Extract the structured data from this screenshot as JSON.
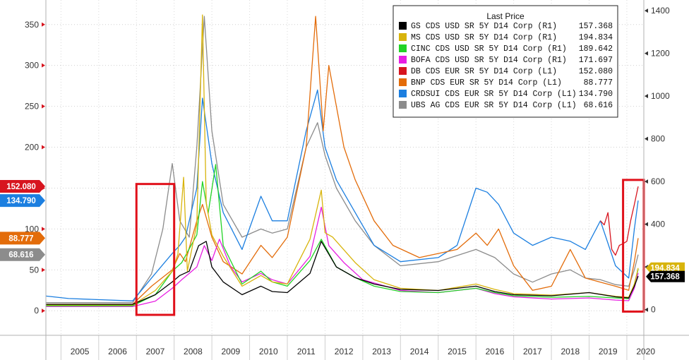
{
  "chart_data": {
    "type": "line",
    "title": "",
    "legend": {
      "title": "Last Price",
      "placement": "top-right"
    },
    "x_ticks": [
      "2005",
      "2006",
      "2007",
      "2008",
      "2009",
      "2010",
      "2011",
      "2012",
      "2013",
      "2014",
      "2015",
      "2016",
      "2017",
      "2018",
      "2019",
      "2020"
    ],
    "xlim": [
      2004.6,
      2020.45
    ],
    "left_axis": {
      "ylim": [
        -30,
        380
      ],
      "ticks": [
        0,
        50,
        100,
        150,
        200,
        250,
        300,
        350
      ],
      "tick_labels": [
        "0",
        "50",
        "100",
        "150",
        "200",
        "250",
        "300",
        "350"
      ]
    },
    "right_axis": {
      "ylim": [
        -120,
        1450
      ],
      "ticks": [
        0,
        200,
        400,
        600,
        800,
        1000,
        1200,
        1400
      ],
      "tick_labels": [
        "0",
        "200",
        "400",
        "600",
        "800",
        "1000",
        "1200",
        "1400"
      ]
    },
    "series": [
      {
        "name": "GS CDS USD SR 5Y D14 Corp",
        "axis_code": "(R1)",
        "last": "157.368",
        "color": "#000000",
        "axis": "right",
        "points": [
          [
            2004.6,
            25
          ],
          [
            2006.9,
            25
          ],
          [
            2007.5,
            70
          ],
          [
            2007.95,
            130
          ],
          [
            2008.15,
            160
          ],
          [
            2008.4,
            180
          ],
          [
            2008.65,
            300
          ],
          [
            2008.85,
            320
          ],
          [
            2009.0,
            200
          ],
          [
            2009.3,
            130
          ],
          [
            2009.8,
            70
          ],
          [
            2010.3,
            110
          ],
          [
            2010.6,
            85
          ],
          [
            2011.0,
            80
          ],
          [
            2011.6,
            170
          ],
          [
            2011.9,
            320
          ],
          [
            2012.3,
            200
          ],
          [
            2012.8,
            150
          ],
          [
            2013.3,
            120
          ],
          [
            2014.0,
            95
          ],
          [
            2015.0,
            90
          ],
          [
            2016.0,
            110
          ],
          [
            2016.5,
            85
          ],
          [
            2017.0,
            70
          ],
          [
            2018.0,
            65
          ],
          [
            2019.0,
            80
          ],
          [
            2019.7,
            60
          ],
          [
            2020.05,
            55
          ],
          [
            2020.2,
            110
          ],
          [
            2020.3,
            157.368
          ]
        ]
      },
      {
        "name": "MS CDS USD SR 5Y D14 Corp",
        "axis_code": "(R1)",
        "last": "194.834",
        "color": "#d8b40c",
        "axis": "right",
        "points": [
          [
            2004.6,
            22
          ],
          [
            2006.9,
            22
          ],
          [
            2007.5,
            90
          ],
          [
            2007.95,
            180
          ],
          [
            2008.1,
            260
          ],
          [
            2008.25,
            620
          ],
          [
            2008.35,
            180
          ],
          [
            2008.6,
            400
          ],
          [
            2008.75,
            1380
          ],
          [
            2008.85,
            500
          ],
          [
            2009.0,
            350
          ],
          [
            2009.3,
            250
          ],
          [
            2009.8,
            110
          ],
          [
            2010.3,
            160
          ],
          [
            2010.6,
            130
          ],
          [
            2011.0,
            120
          ],
          [
            2011.6,
            330
          ],
          [
            2011.9,
            560
          ],
          [
            2012.0,
            360
          ],
          [
            2012.2,
            340
          ],
          [
            2012.8,
            220
          ],
          [
            2013.3,
            140
          ],
          [
            2014.0,
            100
          ],
          [
            2015.0,
            90
          ],
          [
            2016.0,
            120
          ],
          [
            2016.5,
            95
          ],
          [
            2017.0,
            75
          ],
          [
            2018.0,
            68
          ],
          [
            2019.0,
            80
          ],
          [
            2019.7,
            62
          ],
          [
            2020.05,
            58
          ],
          [
            2020.2,
            120
          ],
          [
            2020.3,
            194.834
          ]
        ]
      },
      {
        "name": "CINC CDS USD SR 5Y D14 Corp",
        "axis_code": "(R1)",
        "last": "189.642",
        "color": "#22d326",
        "axis": "right",
        "points": [
          [
            2004.6,
            18
          ],
          [
            2006.9,
            18
          ],
          [
            2007.5,
            70
          ],
          [
            2007.95,
            180
          ],
          [
            2008.2,
            220
          ],
          [
            2008.6,
            350
          ],
          [
            2008.75,
            600
          ],
          [
            2008.9,
            450
          ],
          [
            2009.1,
            680
          ],
          [
            2009.3,
            300
          ],
          [
            2009.8,
            120
          ],
          [
            2010.3,
            180
          ],
          [
            2010.6,
            130
          ],
          [
            2011.0,
            110
          ],
          [
            2011.6,
            230
          ],
          [
            2011.9,
            330
          ],
          [
            2012.3,
            200
          ],
          [
            2012.8,
            150
          ],
          [
            2013.3,
            110
          ],
          [
            2014.0,
            85
          ],
          [
            2015.0,
            80
          ],
          [
            2016.0,
            100
          ],
          [
            2016.5,
            80
          ],
          [
            2017.0,
            65
          ],
          [
            2018.0,
            58
          ],
          [
            2019.0,
            62
          ],
          [
            2019.7,
            55
          ],
          [
            2020.05,
            52
          ],
          [
            2020.2,
            120
          ],
          [
            2020.3,
            189.642
          ]
        ]
      },
      {
        "name": "BOFA CDS USD SR 5Y D14 Corp",
        "axis_code": "(R1)",
        "last": "171.697",
        "color": "#e81ee2",
        "axis": "right",
        "points": [
          [
            2004.6,
            15
          ],
          [
            2006.9,
            15
          ],
          [
            2007.5,
            40
          ],
          [
            2007.95,
            100
          ],
          [
            2008.2,
            140
          ],
          [
            2008.6,
            200
          ],
          [
            2008.8,
            300
          ],
          [
            2009.0,
            230
          ],
          [
            2009.2,
            330
          ],
          [
            2009.5,
            200
          ],
          [
            2009.8,
            130
          ],
          [
            2010.3,
            170
          ],
          [
            2010.6,
            140
          ],
          [
            2011.0,
            120
          ],
          [
            2011.6,
            250
          ],
          [
            2011.9,
            480
          ],
          [
            2012.1,
            300
          ],
          [
            2012.5,
            220
          ],
          [
            2013.0,
            140
          ],
          [
            2014.0,
            90
          ],
          [
            2015.0,
            80
          ],
          [
            2016.0,
            100
          ],
          [
            2016.5,
            75
          ],
          [
            2017.0,
            60
          ],
          [
            2018.0,
            50
          ],
          [
            2019.0,
            55
          ],
          [
            2019.7,
            45
          ],
          [
            2020.05,
            42
          ],
          [
            2020.2,
            100
          ],
          [
            2020.3,
            171.697
          ]
        ]
      },
      {
        "name": "DB CDS EUR SR 5Y D14 Corp",
        "axis_code": "(L1)",
        "last": "152.080",
        "color": "#d7151f",
        "axis": "left",
        "points": [
          [
            2019.3,
            110
          ],
          [
            2019.4,
            105
          ],
          [
            2019.5,
            120
          ],
          [
            2019.6,
            75
          ],
          [
            2019.7,
            68
          ],
          [
            2019.8,
            80
          ],
          [
            2019.9,
            82
          ],
          [
            2020.0,
            85
          ],
          [
            2020.1,
            110
          ],
          [
            2020.2,
            130
          ],
          [
            2020.3,
            152.08
          ]
        ]
      },
      {
        "name": "BNP CDS EUR SR 5Y D14 Corp",
        "axis_code": "(L1)",
        "last": "88.777",
        "color": "#e36c0a",
        "axis": "left",
        "points": [
          [
            2004.6,
            8
          ],
          [
            2006.9,
            8
          ],
          [
            2007.4,
            30
          ],
          [
            2007.95,
            50
          ],
          [
            2008.15,
            70
          ],
          [
            2008.3,
            60
          ],
          [
            2008.6,
            110
          ],
          [
            2008.75,
            130
          ],
          [
            2009.0,
            90
          ],
          [
            2009.3,
            60
          ],
          [
            2009.8,
            45
          ],
          [
            2010.3,
            80
          ],
          [
            2010.6,
            65
          ],
          [
            2011.0,
            90
          ],
          [
            2011.5,
            200
          ],
          [
            2011.75,
            360
          ],
          [
            2011.95,
            220
          ],
          [
            2012.1,
            300
          ],
          [
            2012.3,
            250
          ],
          [
            2012.5,
            200
          ],
          [
            2012.8,
            160
          ],
          [
            2013.3,
            110
          ],
          [
            2013.8,
            80
          ],
          [
            2014.5,
            65
          ],
          [
            2015.0,
            70
          ],
          [
            2015.5,
            75
          ],
          [
            2016.0,
            95
          ],
          [
            2016.3,
            80
          ],
          [
            2016.6,
            100
          ],
          [
            2017.0,
            55
          ],
          [
            2017.5,
            25
          ],
          [
            2018.0,
            30
          ],
          [
            2018.5,
            75
          ],
          [
            2018.9,
            40
          ],
          [
            2019.3,
            35
          ],
          [
            2019.7,
            30
          ],
          [
            2020.05,
            25
          ],
          [
            2020.2,
            60
          ],
          [
            2020.3,
            88.777
          ]
        ]
      },
      {
        "name": "CRDSUI CDS EUR SR 5Y D14 Corp",
        "axis_code": "(L1)",
        "last": "134.790",
        "color": "#1c7fe0",
        "axis": "left",
        "points": [
          [
            2004.6,
            18
          ],
          [
            2005.2,
            15
          ],
          [
            2006.9,
            12
          ],
          [
            2007.4,
            40
          ],
          [
            2007.95,
            70
          ],
          [
            2008.15,
            80
          ],
          [
            2008.3,
            90
          ],
          [
            2008.6,
            150
          ],
          [
            2008.75,
            260
          ],
          [
            2009.0,
            180
          ],
          [
            2009.3,
            120
          ],
          [
            2009.8,
            75
          ],
          [
            2010.3,
            140
          ],
          [
            2010.6,
            110
          ],
          [
            2011.0,
            110
          ],
          [
            2011.5,
            220
          ],
          [
            2011.8,
            270
          ],
          [
            2012.0,
            200
          ],
          [
            2012.3,
            160
          ],
          [
            2012.8,
            120
          ],
          [
            2013.3,
            80
          ],
          [
            2014.0,
            60
          ],
          [
            2015.0,
            65
          ],
          [
            2015.5,
            80
          ],
          [
            2016.0,
            150
          ],
          [
            2016.3,
            145
          ],
          [
            2016.6,
            130
          ],
          [
            2017.0,
            95
          ],
          [
            2017.5,
            80
          ],
          [
            2018.0,
            90
          ],
          [
            2018.5,
            85
          ],
          [
            2018.9,
            75
          ],
          [
            2019.3,
            110
          ],
          [
            2019.7,
            55
          ],
          [
            2020.05,
            40
          ],
          [
            2020.2,
            100
          ],
          [
            2020.3,
            134.79
          ]
        ]
      },
      {
        "name": "UBS AG CDS EUR SR 5Y D14 Corp",
        "axis_code": "(L1)",
        "last": "68.616",
        "color": "#8c8c8c",
        "axis": "left",
        "points": [
          [
            2004.6,
            10
          ],
          [
            2006.9,
            10
          ],
          [
            2007.4,
            45
          ],
          [
            2007.7,
            100
          ],
          [
            2007.95,
            180
          ],
          [
            2008.15,
            110
          ],
          [
            2008.4,
            90
          ],
          [
            2008.6,
            200
          ],
          [
            2008.8,
            360
          ],
          [
            2009.0,
            220
          ],
          [
            2009.3,
            130
          ],
          [
            2009.8,
            90
          ],
          [
            2010.3,
            100
          ],
          [
            2010.6,
            95
          ],
          [
            2011.0,
            100
          ],
          [
            2011.5,
            200
          ],
          [
            2011.8,
            230
          ],
          [
            2012.0,
            190
          ],
          [
            2012.3,
            150
          ],
          [
            2012.8,
            110
          ],
          [
            2013.3,
            80
          ],
          [
            2014.0,
            55
          ],
          [
            2015.0,
            60
          ],
          [
            2016.0,
            75
          ],
          [
            2016.5,
            65
          ],
          [
            2017.0,
            45
          ],
          [
            2017.5,
            35
          ],
          [
            2018.0,
            45
          ],
          [
            2018.5,
            50
          ],
          [
            2018.9,
            40
          ],
          [
            2019.3,
            38
          ],
          [
            2019.7,
            32
          ],
          [
            2020.05,
            30
          ],
          [
            2020.2,
            50
          ],
          [
            2020.3,
            68.616
          ]
        ]
      }
    ],
    "left_badges": [
      {
        "label": "152.080",
        "value": 152.08,
        "color": "#d7151f"
      },
      {
        "label": "134.790",
        "value": 134.79,
        "color": "#1c7fe0"
      },
      {
        "label": "88.777",
        "value": 88.777,
        "color": "#e36c0a"
      },
      {
        "label": "68.616",
        "value": 68.616,
        "color": "#8c8c8c"
      }
    ],
    "right_badges": [
      {
        "label": "194.834",
        "value": 194.834,
        "color": "#d8b40c",
        "text_color": "#ffffff"
      },
      {
        "label": "157.368",
        "value": 157.368,
        "color": "#000000",
        "text_color": "#ffffff"
      }
    ],
    "highlight_boxes": [
      {
        "from": 2007.0,
        "to": 2008.0,
        "bottom": -5,
        "top": 155,
        "color": "#e0101a"
      },
      {
        "from": 2019.9,
        "to": 2020.45,
        "bottom": -1,
        "top": 160,
        "color": "#e0101a"
      }
    ]
  }
}
